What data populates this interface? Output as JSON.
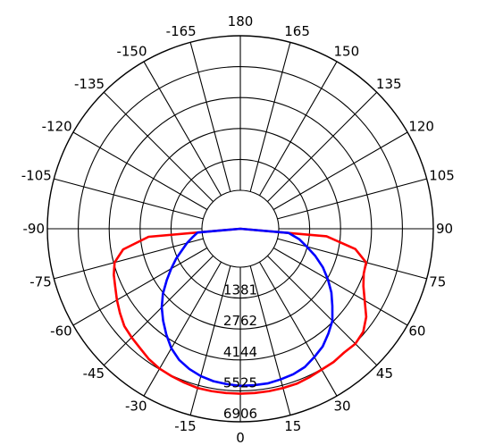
{
  "chart_data": {
    "type": "polar",
    "title": "",
    "angle_labels": [
      "180",
      "165",
      "150",
      "135",
      "120",
      "105",
      "90",
      "75",
      "60",
      "45",
      "30",
      "15",
      "0",
      "-15",
      "-30",
      "-45",
      "-60",
      "-75",
      "-90",
      "-105",
      "-120",
      "-135",
      "-150",
      "-165"
    ],
    "angles": [
      180,
      165,
      150,
      135,
      120,
      105,
      90,
      75,
      60,
      45,
      30,
      15,
      0,
      -15,
      -30,
      -45,
      -60,
      -75,
      -90,
      -105,
      -120,
      -135,
      -150,
      -165
    ],
    "ring_values": [
      1381,
      2762,
      4144,
      5525,
      6906
    ],
    "ring_labels": [
      "1381",
      "2762",
      "4144",
      "5525",
      "6906"
    ],
    "r_max": 6906,
    "grid": true,
    "series": [
      {
        "color": "#ff0000",
        "points": [
          [
            0,
            5650
          ],
          [
            5,
            5650
          ],
          [
            10,
            5650
          ],
          [
            15,
            5650
          ],
          [
            20,
            5650
          ],
          [
            25,
            5600
          ],
          [
            30,
            5550
          ],
          [
            35,
            5550
          ],
          [
            40,
            5500
          ],
          [
            45,
            5550
          ],
          [
            50,
            5450
          ],
          [
            55,
            5150
          ],
          [
            60,
            4700
          ],
          [
            65,
            4350
          ],
          [
            70,
            4150
          ],
          [
            75,
            4100
          ],
          [
            80,
            3500
          ],
          [
            85,
            2150
          ],
          [
            90,
            0
          ],
          [
            -5,
            5650
          ],
          [
            -10,
            5650
          ],
          [
            -15,
            5650
          ],
          [
            -20,
            5600
          ],
          [
            -25,
            5550
          ],
          [
            -30,
            5500
          ],
          [
            -35,
            5400
          ],
          [
            -40,
            5250
          ],
          [
            -45,
            5150
          ],
          [
            -50,
            5050
          ],
          [
            -55,
            4850
          ],
          [
            -60,
            4650
          ],
          [
            -65,
            4450
          ],
          [
            -70,
            4300
          ],
          [
            -75,
            4100
          ],
          [
            -80,
            3600
          ],
          [
            -85,
            2400
          ],
          [
            -90,
            0
          ]
        ]
      },
      {
        "color": "#0000ff",
        "points": [
          [
            0,
            5300
          ],
          [
            5,
            5300
          ],
          [
            10,
            5300
          ],
          [
            15,
            5250
          ],
          [
            20,
            5200
          ],
          [
            25,
            5100
          ],
          [
            30,
            4900
          ],
          [
            35,
            4700
          ],
          [
            40,
            4400
          ],
          [
            45,
            4100
          ],
          [
            50,
            3650
          ],
          [
            55,
            3250
          ],
          [
            60,
            2800
          ],
          [
            65,
            2350
          ],
          [
            70,
            1850
          ],
          [
            75,
            1350
          ],
          [
            80,
            950
          ],
          [
            85,
            450
          ],
          [
            90,
            0
          ],
          [
            -5,
            5250
          ],
          [
            -10,
            5200
          ],
          [
            -15,
            5100
          ],
          [
            -20,
            4950
          ],
          [
            -25,
            4750
          ],
          [
            -30,
            4450
          ],
          [
            -35,
            4050
          ],
          [
            -40,
            3650
          ],
          [
            -45,
            3250
          ],
          [
            -50,
            2800
          ],
          [
            -55,
            2300
          ],
          [
            -60,
            1850
          ],
          [
            -65,
            1450
          ],
          [
            -70,
            1050
          ],
          [
            -75,
            750
          ],
          [
            -80,
            450
          ],
          [
            -85,
            200
          ],
          [
            -90,
            0
          ]
        ]
      }
    ]
  }
}
